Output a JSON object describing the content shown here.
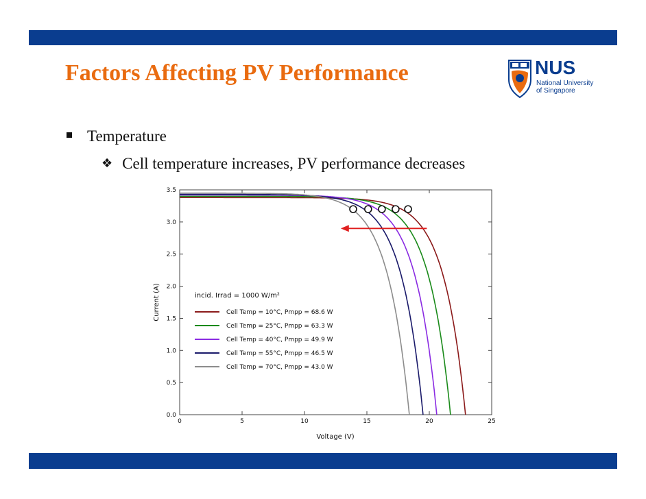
{
  "slide": {
    "title": "Factors Affecting PV Performance",
    "bullet1": "Temperature",
    "bullet2": "Cell temperature increases, PV performance decreases"
  },
  "logo": {
    "name": "NUS",
    "line1": "National University",
    "line2": "of Singapore",
    "colors": {
      "blue": "#0a3d8f",
      "orange": "#e96b10"
    }
  },
  "colors": {
    "band": "#0a3d8f",
    "title": "#e96b10"
  },
  "chart_data": {
    "type": "line",
    "xlabel": "Voltage (V)",
    "ylabel": "Current (A)",
    "xlim": [
      0,
      25
    ],
    "ylim": [
      0,
      3.5
    ],
    "xticks": [
      "0",
      "5",
      "10",
      "15",
      "20",
      "25"
    ],
    "yticks": [
      "0.0",
      "0.5",
      "1.0",
      "1.5",
      "2.0",
      "2.5",
      "3.0",
      "3.5"
    ],
    "annotation": "incid. Irrad = 1000 W/m²",
    "legend_placement": "center-left",
    "grid": false,
    "series": [
      {
        "name": "Cell Temp = 10°C, Pmpp = 68.6 W",
        "color": "#8b1a1a",
        "isc": 3.38,
        "voc": 22.9,
        "mpp_v": 18.3
      },
      {
        "name": "Cell Temp = 25°C, Pmpp = 63.3 W",
        "color": "#1a8a1a",
        "isc": 3.4,
        "voc": 21.7,
        "mpp_v": 17.3
      },
      {
        "name": "Cell Temp = 40°C, Pmpp = 49.9 W",
        "color": "#8a2be2",
        "isc": 3.42,
        "voc": 20.6,
        "mpp_v": 16.2
      },
      {
        "name": "Cell Temp = 55°C, Pmpp = 46.5 W",
        "color": "#1a1a6a",
        "isc": 3.43,
        "voc": 19.5,
        "mpp_v": 15.1
      },
      {
        "name": "Cell Temp = 70°C, Pmpp = 43.0 W",
        "color": "#8c8c8c",
        "isc": 3.45,
        "voc": 18.4,
        "mpp_v": 13.9
      }
    ],
    "mpp_current": 3.2,
    "arrow": {
      "from_v": 19.8,
      "to_v": 12.9,
      "at_i": 2.9,
      "color": "#e02020"
    }
  }
}
